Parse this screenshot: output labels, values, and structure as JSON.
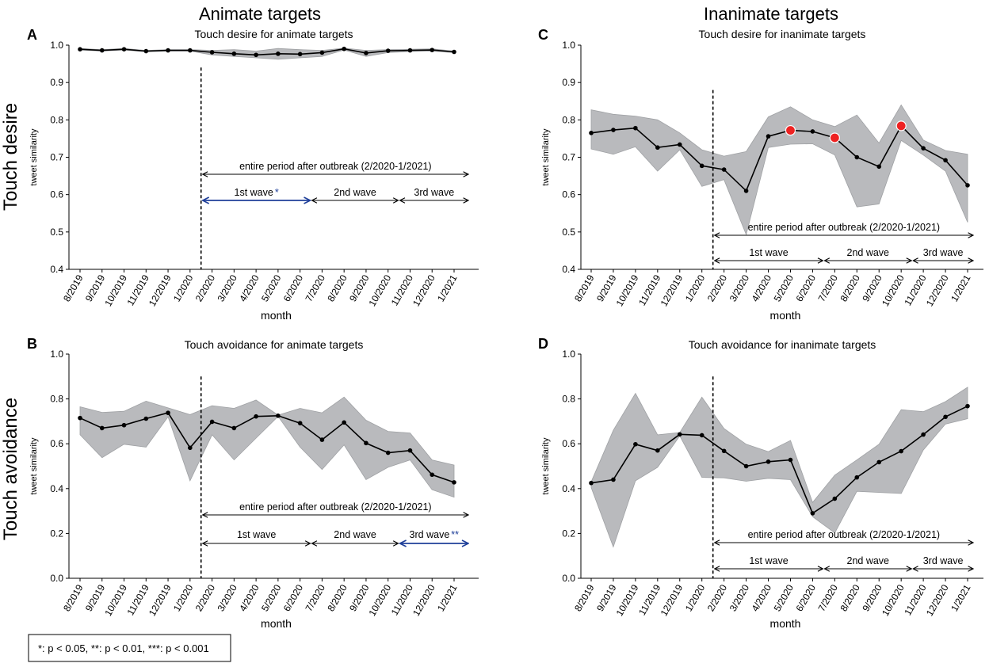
{
  "figure": {
    "column_titles": [
      "Animate targets",
      "Inanimate targets"
    ],
    "row_labels": [
      "Touch desire",
      "Touch avoidance"
    ],
    "legend_text": "*: p < 0.05, **: p < 0.01, ***: p < 0.001",
    "colors": {
      "line": "#000000",
      "band": "#b9babd",
      "highlight_marker": "#ee2222",
      "significant_arrow": "#1f3f99",
      "normal_arrow": "#000000"
    }
  },
  "chart_data": [
    {
      "panel": "A",
      "type": "line",
      "title": "Touch desire for animate targets",
      "xlabel": "month",
      "ylabel": "tweet similarity",
      "categories": [
        "8/2019",
        "9/2019",
        "10/2019",
        "11/2019",
        "12/2019",
        "1/2020",
        "2/2020",
        "3/2020",
        "4/2020",
        "5/2020",
        "6/2020",
        "7/2020",
        "8/2020",
        "9/2020",
        "10/2020",
        "11/2020",
        "12/2020",
        "1/2021"
      ],
      "series": [
        {
          "name": "tweet similarity",
          "values": [
            0.989,
            0.986,
            0.989,
            0.984,
            0.986,
            0.986,
            0.981,
            0.977,
            0.974,
            0.977,
            0.976,
            0.98,
            0.99,
            0.979,
            0.985,
            0.986,
            0.987,
            0.982
          ]
        }
      ],
      "band_upper": [
        0.991,
        0.988,
        0.991,
        0.986,
        0.988,
        0.988,
        0.986,
        0.988,
        0.984,
        0.991,
        0.988,
        0.986,
        0.992,
        0.986,
        0.988,
        0.989,
        0.99,
        0.984
      ],
      "band_lower": [
        0.987,
        0.984,
        0.987,
        0.982,
        0.984,
        0.984,
        0.974,
        0.97,
        0.966,
        0.962,
        0.966,
        0.97,
        0.987,
        0.97,
        0.98,
        0.983,
        0.984,
        0.98
      ],
      "ylim": [
        0.4,
        1.0
      ],
      "yticks": [
        "0.4",
        "0.5",
        "0.6",
        "0.7",
        "0.8",
        "0.9",
        "1.0"
      ],
      "outbreak_line_after": "1/2020",
      "periods": [
        {
          "label": "entire period after outbreak (2/2020-1/2021)",
          "start": "2/2020",
          "end": "1/2021",
          "significance": ""
        },
        {
          "label": "1st wave",
          "start": "2/2020",
          "end": "6/2020",
          "significance": "*"
        },
        {
          "label": "2nd wave",
          "start": "6/2020",
          "end": "10/2020",
          "significance": ""
        },
        {
          "label": "3rd wave",
          "start": "10/2020",
          "end": "1/2021",
          "significance": ""
        }
      ],
      "highlighted_months": []
    },
    {
      "panel": "B",
      "type": "line",
      "title": "Touch avoidance for animate targets",
      "xlabel": "month",
      "ylabel": "tweet similarity",
      "categories": [
        "8/2019",
        "9/2019",
        "10/2019",
        "11/2019",
        "12/2019",
        "1/2020",
        "2/2020",
        "3/2020",
        "4/2020",
        "5/2020",
        "6/2020",
        "7/2020",
        "8/2020",
        "9/2020",
        "10/2020",
        "11/2020",
        "12/2020",
        "1/2021"
      ],
      "series": [
        {
          "name": "tweet similarity",
          "values": [
            0.715,
            0.67,
            0.683,
            0.712,
            0.738,
            0.582,
            0.698,
            0.67,
            0.722,
            0.725,
            0.692,
            0.618,
            0.695,
            0.603,
            0.56,
            0.57,
            0.462,
            0.428
          ]
        }
      ],
      "band_upper": [
        0.765,
        0.74,
        0.745,
        0.79,
        0.76,
        0.73,
        0.77,
        0.758,
        0.795,
        0.728,
        0.758,
        0.738,
        0.808,
        0.705,
        0.655,
        0.648,
        0.528,
        0.505
      ],
      "band_lower": [
        0.64,
        0.538,
        0.598,
        0.585,
        0.72,
        0.435,
        0.64,
        0.528,
        0.625,
        0.722,
        0.585,
        0.485,
        0.595,
        0.44,
        0.495,
        0.528,
        0.395,
        0.362
      ],
      "ylim": [
        0.0,
        1.0
      ],
      "yticks": [
        "0.0",
        "0.2",
        "0.4",
        "0.6",
        "0.8",
        "1.0"
      ],
      "outbreak_line_after": "1/2020",
      "periods": [
        {
          "label": "entire period after outbreak (2/2020-1/2021)",
          "start": "2/2020",
          "end": "1/2021",
          "significance": ""
        },
        {
          "label": "1st wave",
          "start": "2/2020",
          "end": "6/2020",
          "significance": ""
        },
        {
          "label": "2nd wave",
          "start": "6/2020",
          "end": "10/2020",
          "significance": ""
        },
        {
          "label": "3rd wave",
          "start": "10/2020",
          "end": "1/2021",
          "significance": "**"
        }
      ],
      "highlighted_months": []
    },
    {
      "panel": "C",
      "type": "line",
      "title": "Touch desire for inanimate targets",
      "xlabel": "month",
      "ylabel": "tweet similarity",
      "categories": [
        "8/2019",
        "9/2019",
        "10/2019",
        "11/2019",
        "12/2019",
        "1/2020",
        "2/2020",
        "3/2020",
        "4/2020",
        "5/2020",
        "6/2020",
        "7/2020",
        "8/2020",
        "9/2020",
        "10/2020",
        "11/2020",
        "12/2020",
        "1/2021"
      ],
      "series": [
        {
          "name": "tweet similarity",
          "values": [
            0.765,
            0.773,
            0.778,
            0.726,
            0.734,
            0.677,
            0.667,
            0.61,
            0.756,
            0.772,
            0.769,
            0.752,
            0.7,
            0.675,
            0.784,
            0.724,
            0.692,
            0.625
          ]
        }
      ],
      "band_upper": [
        0.827,
        0.815,
        0.81,
        0.8,
        0.765,
        0.72,
        0.703,
        0.715,
        0.808,
        0.835,
        0.8,
        0.782,
        0.813,
        0.738,
        0.84,
        0.746,
        0.718,
        0.708
      ],
      "band_lower": [
        0.722,
        0.708,
        0.728,
        0.663,
        0.72,
        0.622,
        0.64,
        0.493,
        0.726,
        0.735,
        0.736,
        0.706,
        0.567,
        0.575,
        0.745,
        0.706,
        0.663,
        0.526
      ],
      "ylim": [
        0.4,
        1.0
      ],
      "yticks": [
        "0.4",
        "0.5",
        "0.6",
        "0.7",
        "0.8",
        "0.9",
        "1.0"
      ],
      "outbreak_line_after": "1/2020",
      "periods": [
        {
          "label": "entire period after outbreak (2/2020-1/2021)",
          "start": "2/2020",
          "end": "1/2021",
          "significance": ""
        },
        {
          "label": "1st wave",
          "start": "2/2020",
          "end": "6/2020",
          "significance": ""
        },
        {
          "label": "2nd wave",
          "start": "6/2020",
          "end": "10/2020",
          "significance": ""
        },
        {
          "label": "3rd wave",
          "start": "10/2020",
          "end": "1/2021",
          "significance": ""
        }
      ],
      "highlighted_months": [
        "5/2020",
        "7/2020",
        "10/2020"
      ]
    },
    {
      "panel": "D",
      "type": "line",
      "title": "Touch avoidance for inanimate targets",
      "xlabel": "month",
      "ylabel": "tweet similarity",
      "categories": [
        "8/2019",
        "9/2019",
        "10/2019",
        "11/2019",
        "12/2019",
        "1/2020",
        "2/2020",
        "3/2020",
        "4/2020",
        "5/2020",
        "6/2020",
        "7/2020",
        "8/2020",
        "9/2020",
        "10/2020",
        "11/2020",
        "12/2020",
        "1/2021"
      ],
      "series": [
        {
          "name": "tweet similarity",
          "values": [
            0.425,
            0.44,
            0.598,
            0.57,
            0.642,
            0.638,
            0.568,
            0.5,
            0.52,
            0.528,
            0.29,
            0.355,
            0.45,
            0.518,
            0.567,
            0.641,
            0.72,
            0.768
          ]
        }
      ],
      "band_upper": [
        0.43,
        0.66,
        0.825,
        0.64,
        0.65,
        0.808,
        0.668,
        0.598,
        0.565,
        0.615,
        0.338,
        0.46,
        0.528,
        0.598,
        0.752,
        0.743,
        0.788,
        0.852
      ],
      "band_lower": [
        0.405,
        0.14,
        0.435,
        0.495,
        0.635,
        0.45,
        0.448,
        0.433,
        0.446,
        0.44,
        0.275,
        0.202,
        0.388,
        0.383,
        0.378,
        0.572,
        0.688,
        0.712
      ],
      "ylim": [
        0.0,
        1.0
      ],
      "yticks": [
        "0.0",
        "0.2",
        "0.4",
        "0.6",
        "0.8",
        "1.0"
      ],
      "outbreak_line_after": "1/2020",
      "periods": [
        {
          "label": "entire period after outbreak (2/2020-1/2021)",
          "start": "2/2020",
          "end": "1/2021",
          "significance": ""
        },
        {
          "label": "1st wave",
          "start": "2/2020",
          "end": "6/2020",
          "significance": ""
        },
        {
          "label": "2nd wave",
          "start": "6/2020",
          "end": "10/2020",
          "significance": ""
        },
        {
          "label": "3rd wave",
          "start": "10/2020",
          "end": "1/2021",
          "significance": ""
        }
      ],
      "highlighted_months": []
    }
  ]
}
